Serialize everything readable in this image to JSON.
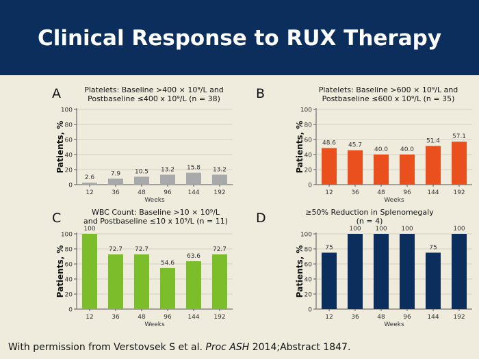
{
  "slide": {
    "title": "Clinical Response to RUX Therapy",
    "footnote_pre": "With permission from Verstovsek S et al. ",
    "footnote_journal": "Proc ASH",
    "footnote_post": " 2014;Abstract 1847."
  },
  "colors": {
    "header_bg": "#0b2e5c",
    "background": "#efebdd",
    "A": "#a8a9ab",
    "B": "#e9501e",
    "C": "#7cbd2c",
    "D": "#0b2e5c"
  },
  "chart_data": [
    {
      "panel": "A",
      "type": "bar",
      "title_line1": "Platelets: Baseline >400 × 10⁹/L and",
      "title_line2": "Postbaseline ≤400 x 10⁹/L (n = 38)",
      "xlabel": "Weeks",
      "ylabel": "Patients, %",
      "categories": [
        "12",
        "36",
        "48",
        "96",
        "144",
        "192"
      ],
      "values": [
        2.6,
        7.9,
        10.5,
        13.2,
        15.8,
        13.2
      ],
      "labels": [
        "2.6",
        "7.9",
        "10.5",
        "13.2",
        "15.8",
        "13.2"
      ],
      "yticks": [
        "0",
        "20",
        "40",
        "60",
        "80",
        "100"
      ],
      "ylim": [
        0,
        100
      ],
      "grid": true,
      "color": "#a8a9ab"
    },
    {
      "panel": "B",
      "type": "bar",
      "title_line1": "Platelets: Baseline >600 × 10⁹/L and",
      "title_line2": "Postbaseline ≤600 x 10⁹/L (n = 35)",
      "xlabel": "Weeks",
      "ylabel": "Patients, %",
      "categories": [
        "12",
        "36",
        "48",
        "96",
        "144",
        "192"
      ],
      "values": [
        48.6,
        45.7,
        40.0,
        40.0,
        51.4,
        57.1
      ],
      "labels": [
        "48.6",
        "45.7",
        "40.0",
        "40.0",
        "51.4",
        "57.1"
      ],
      "yticks": [
        "0",
        "20",
        "40",
        "60",
        "80",
        "100"
      ],
      "ylim": [
        0,
        100
      ],
      "grid": true,
      "color": "#e9501e"
    },
    {
      "panel": "C",
      "type": "bar",
      "title_line1": "WBC Count: Baseline >10 × 10⁹/L",
      "title_line2": "and Postbaseline ≤10 x 10⁹/L (n = 11)",
      "xlabel": "Weeks",
      "ylabel": "Patients, %",
      "categories": [
        "12",
        "36",
        "48",
        "96",
        "144",
        "192"
      ],
      "values": [
        100,
        72.7,
        72.7,
        54.6,
        63.6,
        72.7
      ],
      "labels": [
        "100",
        "72.7",
        "72.7",
        "54.6",
        "63.6",
        "72.7"
      ],
      "yticks": [
        "0",
        "20",
        "40",
        "60",
        "80",
        "100"
      ],
      "ylim": [
        0,
        100
      ],
      "grid": true,
      "color": "#7cbd2c"
    },
    {
      "panel": "D",
      "type": "bar",
      "title_line1": "≥50% Reduction in Splenomegaly",
      "title_line2": "(n = 4)",
      "xlabel": "Weeks",
      "ylabel": "Patients, %",
      "categories": [
        "12",
        "36",
        "48",
        "96",
        "144",
        "192"
      ],
      "values": [
        75,
        100,
        100,
        100,
        75,
        100
      ],
      "labels": [
        "75",
        "100",
        "100",
        "100",
        "75",
        "100"
      ],
      "yticks": [
        "0",
        "20",
        "40",
        "60",
        "80",
        "100"
      ],
      "ylim": [
        0,
        100
      ],
      "grid": true,
      "color": "#0b2e5c"
    }
  ]
}
